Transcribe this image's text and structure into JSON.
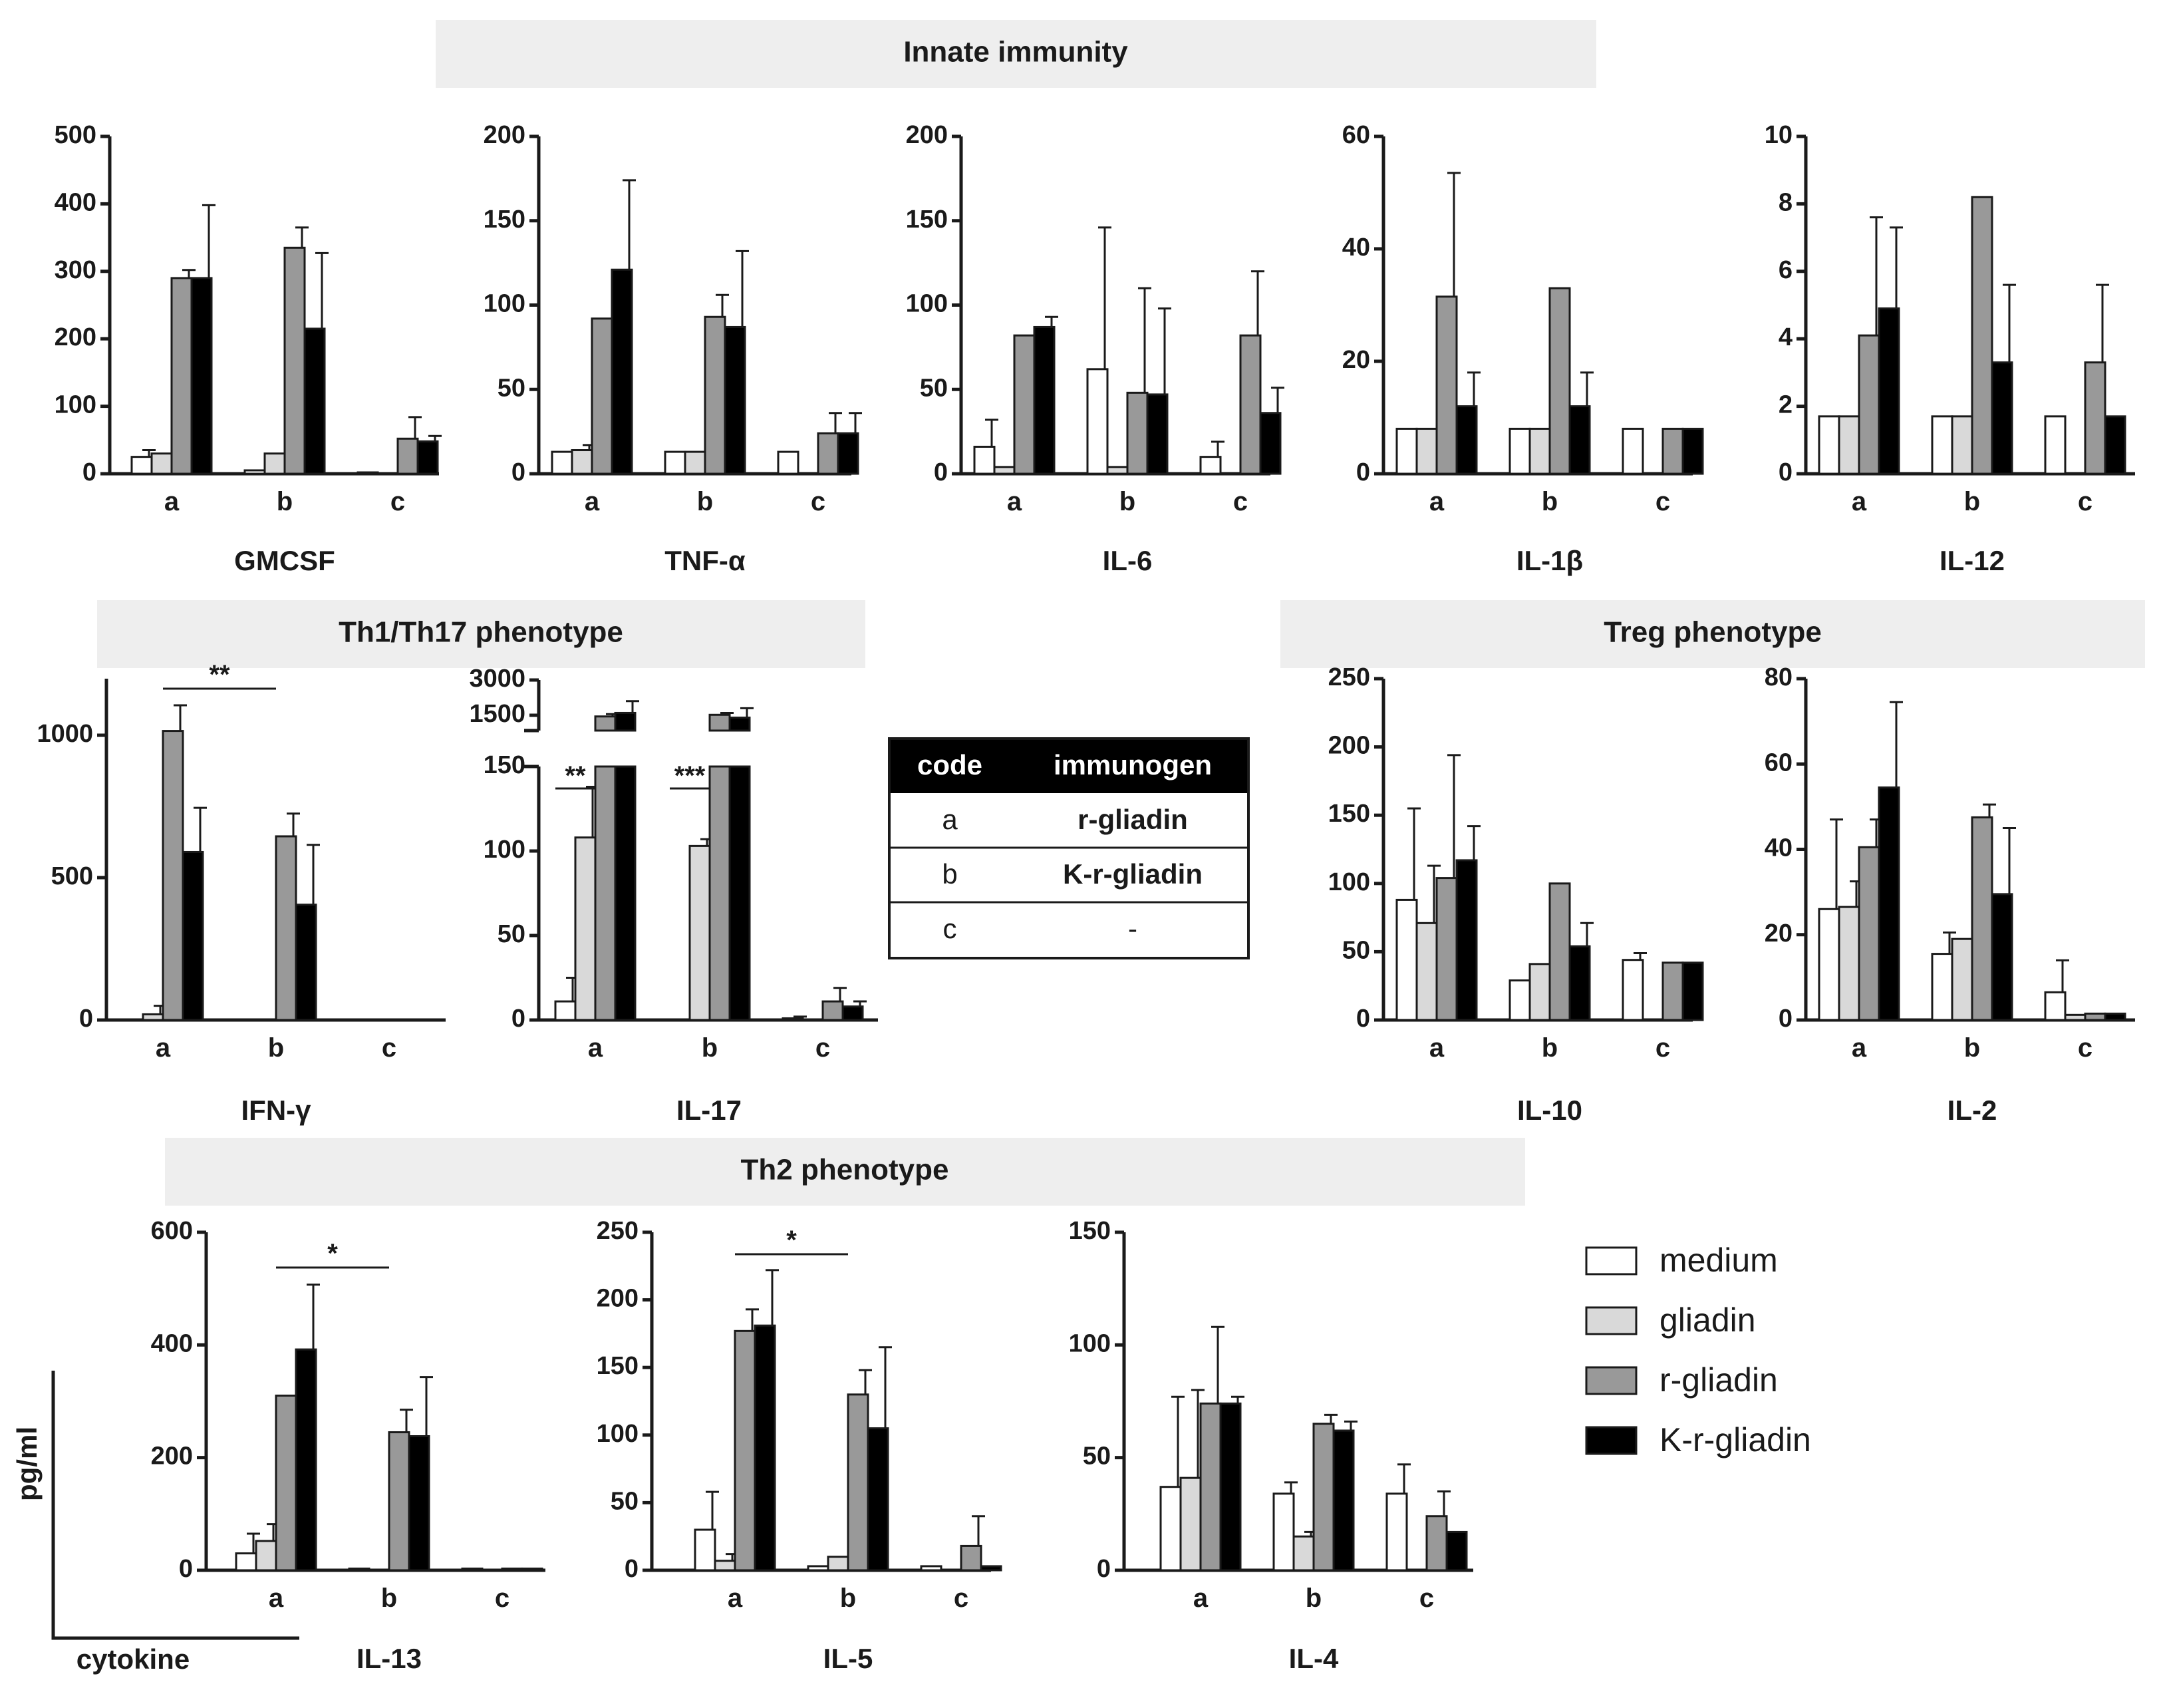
{
  "colors": {
    "medium": "#ffffff",
    "gliadin": "#d9d9d9",
    "r_gliadin": "#999999",
    "K_r_gliadin": "#000000"
  },
  "sections": {
    "innate": "Innate immunity",
    "th1th17": "Th1/Th17 phenotype",
    "treg": "Treg phenotype",
    "th2": "Th2 phenotype"
  },
  "table": {
    "headers": [
      "code",
      "immunogen"
    ],
    "rows": [
      [
        "a",
        "r-gliadin"
      ],
      [
        "b",
        "K-r-gliadin"
      ],
      [
        "c",
        "-"
      ]
    ]
  },
  "legend": [
    "medium",
    "gliadin",
    "r-gliadin",
    "K-r-gliadin"
  ],
  "axis_key": {
    "ylabel": "pg/ml",
    "xlabel": "cytokine"
  },
  "chart_data": [
    {
      "id": "gmcsf",
      "type": "bar",
      "title": "GMCSF",
      "categories": [
        "a",
        "b",
        "c"
      ],
      "series": [
        "medium",
        "gliadin",
        "r-gliadin",
        "K-r-gliadin"
      ],
      "ylim": [
        0,
        500
      ],
      "yticks": [
        0,
        100,
        200,
        300,
        400,
        500
      ],
      "values": [
        [
          25,
          30,
          290,
          290
        ],
        [
          5,
          30,
          335,
          215
        ],
        [
          2,
          null,
          52,
          48
        ]
      ],
      "errors": [
        [
          10,
          0,
          12,
          108
        ],
        [
          0,
          0,
          30,
          112
        ],
        [
          0,
          null,
          32,
          8
        ]
      ]
    },
    {
      "id": "tnfa",
      "type": "bar",
      "title": "TNF-α",
      "categories": [
        "a",
        "b",
        "c"
      ],
      "series": [
        "medium",
        "gliadin",
        "r-gliadin",
        "K-r-gliadin"
      ],
      "ylim": [
        0,
        200
      ],
      "yticks": [
        0,
        50,
        100,
        150,
        200
      ],
      "values": [
        [
          13,
          14,
          92,
          121
        ],
        [
          13,
          13,
          93,
          87
        ],
        [
          13,
          null,
          24,
          24
        ]
      ],
      "errors": [
        [
          0,
          3,
          0,
          53
        ],
        [
          0,
          0,
          13,
          45
        ],
        [
          0,
          null,
          12,
          12
        ]
      ]
    },
    {
      "id": "il6",
      "type": "bar",
      "title": "IL-6",
      "categories": [
        "a",
        "b",
        "c"
      ],
      "series": [
        "medium",
        "gliadin",
        "r-gliadin",
        "K-r-gliadin"
      ],
      "ylim": [
        0,
        200
      ],
      "yticks": [
        0,
        50,
        100,
        150,
        200
      ],
      "values": [
        [
          16,
          4,
          82,
          87
        ],
        [
          62,
          4,
          48,
          47
        ],
        [
          10,
          null,
          82,
          36
        ]
      ],
      "errors": [
        [
          16,
          0,
          0,
          6
        ],
        [
          84,
          0,
          62,
          51
        ],
        [
          9,
          null,
          38,
          15
        ]
      ]
    },
    {
      "id": "il1b",
      "type": "bar",
      "title": "IL-1β",
      "categories": [
        "a",
        "b",
        "c"
      ],
      "series": [
        "medium",
        "gliadin",
        "r-gliadin",
        "K-r-gliadin"
      ],
      "ylim": [
        0,
        60
      ],
      "yticks": [
        0,
        20,
        40,
        60
      ],
      "values": [
        [
          8,
          8,
          31.5,
          12
        ],
        [
          8,
          8,
          33,
          12
        ],
        [
          8,
          null,
          8,
          8
        ]
      ],
      "errors": [
        [
          0,
          0,
          22,
          6
        ],
        [
          0,
          0,
          0,
          6
        ],
        [
          0,
          null,
          0,
          0
        ]
      ]
    },
    {
      "id": "il12",
      "type": "bar",
      "title": "IL-12",
      "categories": [
        "a",
        "b",
        "c"
      ],
      "series": [
        "medium",
        "gliadin",
        "r-gliadin",
        "K-r-gliadin"
      ],
      "ylim": [
        0,
        10
      ],
      "yticks": [
        0,
        2,
        4,
        6,
        8,
        10
      ],
      "values": [
        [
          1.7,
          1.7,
          4.1,
          4.9
        ],
        [
          1.7,
          1.7,
          8.2,
          3.3
        ],
        [
          1.7,
          null,
          3.3,
          1.7
        ]
      ],
      "errors": [
        [
          0,
          0,
          3.5,
          2.4
        ],
        [
          0,
          0,
          0,
          2.3
        ],
        [
          0,
          null,
          2.3,
          0
        ]
      ]
    },
    {
      "id": "ifng",
      "type": "bar",
      "title": "IFN-γ",
      "categories": [
        "a",
        "b",
        "c"
      ],
      "series": [
        "medium",
        "gliadin",
        "r-gliadin",
        "K-r-gliadin"
      ],
      "ylim": [
        0,
        1200
      ],
      "yticks": [
        0,
        500,
        1000
      ],
      "values": [
        [
          null,
          20,
          1015,
          590
        ],
        [
          null,
          null,
          645,
          405
        ],
        [
          null,
          null,
          null,
          null
        ]
      ],
      "errors": [
        [
          null,
          30,
          90,
          155
        ],
        [
          null,
          null,
          80,
          210
        ],
        [
          null,
          null,
          null,
          null
        ]
      ],
      "annotations": [
        {
          "text": "**",
          "from": "a",
          "to": "b"
        }
      ]
    },
    {
      "id": "il17",
      "type": "bar",
      "title": "IL-17",
      "categories": [
        "a",
        "b",
        "c"
      ],
      "series": [
        "medium",
        "gliadin",
        "r-gliadin",
        "K-r-gliadin"
      ],
      "ylim": [
        0,
        150
      ],
      "yticks": [
        0,
        50,
        100,
        150
      ],
      "upper_yticks": [
        1500,
        3000
      ],
      "axis_break": true,
      "values": [
        [
          11,
          108,
          1450,
          1600
        ],
        [
          null,
          103,
          1520,
          1400
        ],
        [
          1,
          null,
          11,
          8
        ]
      ],
      "errors": [
        [
          14,
          30,
          100,
          500
        ],
        [
          null,
          4,
          80,
          400
        ],
        [
          1,
          null,
          8,
          3
        ]
      ],
      "annotations": [
        {
          "text": "**",
          "at": "a"
        },
        {
          "text": "***",
          "at": "b"
        }
      ]
    },
    {
      "id": "il10",
      "type": "bar",
      "title": "IL-10",
      "categories": [
        "a",
        "b",
        "c"
      ],
      "series": [
        "medium",
        "gliadin",
        "r-gliadin",
        "K-r-gliadin"
      ],
      "ylim": [
        0,
        250
      ],
      "yticks": [
        0,
        50,
        100,
        150,
        200,
        250
      ],
      "values": [
        [
          88,
          71,
          104,
          117
        ],
        [
          29,
          41,
          100,
          54
        ],
        [
          44,
          null,
          42,
          42
        ]
      ],
      "errors": [
        [
          67,
          42,
          90,
          25
        ],
        [
          0,
          0,
          0,
          17
        ],
        [
          5,
          null,
          0,
          0
        ]
      ]
    },
    {
      "id": "il2",
      "type": "bar",
      "title": "IL-2",
      "categories": [
        "a",
        "b",
        "c"
      ],
      "series": [
        "medium",
        "gliadin",
        "r-gliadin",
        "K-r-gliadin"
      ],
      "ylim": [
        0,
        80
      ],
      "yticks": [
        0,
        20,
        40,
        60,
        80
      ],
      "values": [
        [
          26,
          26.5,
          40.5,
          54.5
        ],
        [
          15.5,
          19,
          47.5,
          29.5
        ],
        [
          6.5,
          1.2,
          1.5,
          1.5
        ]
      ],
      "errors": [
        [
          21,
          6,
          6.5,
          20
        ],
        [
          5,
          0,
          3,
          15.5
        ],
        [
          7.5,
          0,
          0,
          0
        ]
      ]
    },
    {
      "id": "il13",
      "type": "bar",
      "title": "IL-13",
      "categories": [
        "a",
        "b",
        "c"
      ],
      "series": [
        "medium",
        "gliadin",
        "r-gliadin",
        "K-r-gliadin"
      ],
      "ylim": [
        0,
        600
      ],
      "yticks": [
        0,
        200,
        400,
        600
      ],
      "values": [
        [
          30,
          52,
          310,
          392
        ],
        [
          3,
          null,
          245,
          238
        ],
        [
          3,
          null,
          3,
          3
        ]
      ],
      "errors": [
        [
          35,
          30,
          0,
          115
        ],
        [
          0,
          null,
          40,
          105
        ],
        [
          0,
          null,
          0,
          0
        ]
      ],
      "annotations": [
        {
          "text": "*",
          "from": "a",
          "to": "b"
        }
      ]
    },
    {
      "id": "il5",
      "type": "bar",
      "title": "IL-5",
      "categories": [
        "a",
        "b",
        "c"
      ],
      "series": [
        "medium",
        "gliadin",
        "r-gliadin",
        "K-r-gliadin"
      ],
      "ylim": [
        0,
        250
      ],
      "yticks": [
        0,
        50,
        100,
        150,
        200,
        250
      ],
      "values": [
        [
          30,
          7,
          177,
          181
        ],
        [
          3,
          10,
          130,
          105
        ],
        [
          3,
          null,
          18,
          3
        ]
      ],
      "errors": [
        [
          28,
          5,
          16,
          41
        ],
        [
          0,
          0,
          18,
          60
        ],
        [
          0,
          null,
          22,
          0
        ]
      ],
      "annotations": [
        {
          "text": "*",
          "from": "a",
          "to": "b"
        }
      ]
    },
    {
      "id": "il4",
      "type": "bar",
      "title": "IL-4",
      "categories": [
        "a",
        "b",
        "c"
      ],
      "series": [
        "medium",
        "gliadin",
        "r-gliadin",
        "K-r-gliadin"
      ],
      "ylim": [
        0,
        150
      ],
      "yticks": [
        0,
        50,
        100,
        150
      ],
      "values": [
        [
          37,
          41,
          74,
          74
        ],
        [
          34,
          15,
          65,
          62
        ],
        [
          34,
          null,
          24,
          17
        ]
      ],
      "errors": [
        [
          40,
          39,
          34,
          3
        ],
        [
          5,
          2,
          4,
          4
        ],
        [
          13,
          null,
          11,
          0
        ]
      ]
    }
  ]
}
